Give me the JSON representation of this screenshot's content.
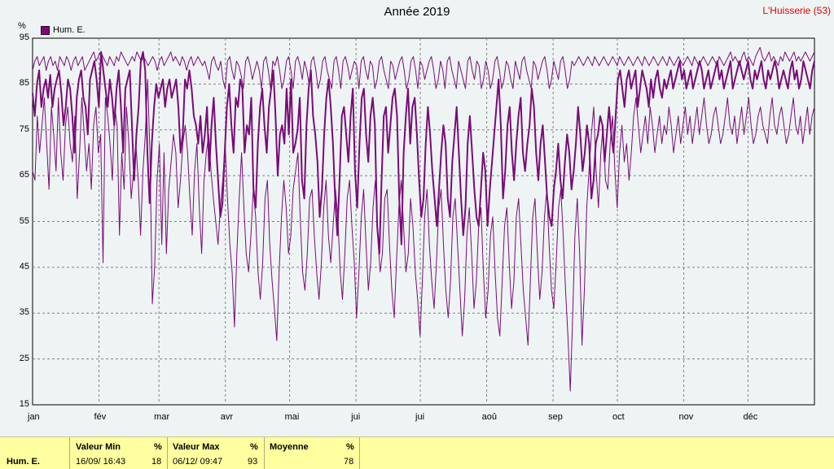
{
  "title": "Année 2019",
  "station": "L'Huisserie (53)",
  "unit": "%",
  "legend": {
    "label": "Hum. E.",
    "color": "#7a0a78"
  },
  "colors": {
    "background": "#eef4f4",
    "grid": "#808080",
    "series": "#7a0a78",
    "stats_bg": "#ffffa0"
  },
  "chart_data": {
    "type": "line",
    "title": "Année 2019",
    "xlabel": "",
    "ylabel": "%",
    "ylim": [
      15,
      95
    ],
    "yticks": [
      95,
      85,
      75,
      65,
      55,
      45,
      35,
      25,
      15
    ],
    "x_tick_labels": [
      "jan",
      "fév",
      "mar",
      "avr",
      "mai",
      "jui",
      "jui",
      "aoû",
      "sep",
      "oct",
      "nov",
      "déc"
    ],
    "x_tick_days": [
      0,
      31,
      59,
      90,
      120,
      151,
      181,
      212,
      243,
      273,
      304,
      334
    ],
    "x_range_days": [
      0,
      365
    ],
    "grid": true,
    "legend_position": "top-left",
    "series": [
      {
        "name": "Hum. E.",
        "role": "average",
        "stroke": 2,
        "values": [
          83,
          78,
          85,
          88,
          80,
          84,
          86,
          82,
          87,
          80,
          84,
          86,
          88,
          83,
          76,
          80,
          86,
          84,
          78,
          70,
          82,
          86,
          88,
          82,
          80,
          74,
          86,
          88,
          90,
          86,
          80,
          92,
          88,
          84,
          80,
          86,
          82,
          76,
          84,
          88,
          80,
          70,
          84,
          86,
          88,
          76,
          64,
          74,
          80,
          90,
          92,
          88,
          70,
          59,
          72,
          80,
          85,
          82,
          84,
          86,
          80,
          84,
          86,
          82,
          84,
          86,
          80,
          70,
          74,
          86,
          84,
          88,
          84,
          78,
          76,
          72,
          78,
          70,
          74,
          80,
          66,
          76,
          82,
          72,
          64,
          56,
          59,
          70,
          80,
          85,
          76,
          70,
          82,
          80,
          86,
          84,
          70,
          76,
          74,
          82,
          62,
          58,
          72,
          80,
          84,
          76,
          70,
          80,
          84,
          88,
          78,
          65,
          74,
          76,
          72,
          84,
          74,
          86,
          70,
          72,
          75,
          82,
          64,
          60,
          76,
          84,
          88,
          78,
          74,
          68,
          56,
          62,
          74,
          82,
          86,
          80,
          72,
          60,
          52,
          64,
          78,
          80,
          74,
          68,
          78,
          84,
          66,
          58,
          72,
          82,
          84,
          74,
          68,
          78,
          82,
          76,
          54,
          48,
          64,
          78,
          80,
          70,
          76,
          82,
          84,
          78,
          60,
          50,
          70,
          78,
          84,
          72,
          80,
          82,
          74,
          64,
          56,
          60,
          72,
          80,
          74,
          66,
          60,
          54,
          62,
          70,
          76,
          72,
          60,
          56,
          68,
          74,
          80,
          70,
          60,
          52,
          58,
          72,
          78,
          70,
          62,
          56,
          54,
          62,
          70,
          66,
          54,
          62,
          68,
          74,
          80,
          86,
          76,
          60,
          66,
          76,
          80,
          70,
          64,
          72,
          78,
          82,
          70,
          66,
          72,
          76,
          84,
          80,
          70,
          64,
          72,
          76,
          68,
          60,
          56,
          54,
          62,
          66,
          72,
          64,
          60,
          68,
          74,
          70,
          62,
          66,
          72,
          80,
          74,
          66,
          70,
          76,
          72,
          60,
          64,
          72,
          74,
          78,
          76,
          68,
          74,
          80,
          74,
          70,
          78,
          86,
          88,
          84,
          80,
          86,
          88,
          84,
          86,
          88,
          80,
          84,
          88,
          86,
          84,
          80,
          86,
          82,
          86,
          88,
          84,
          82,
          86,
          84,
          86,
          88,
          84,
          86,
          88,
          90,
          86,
          88,
          84,
          86,
          88,
          84,
          86,
          88,
          90,
          88,
          84,
          86,
          88,
          84,
          86,
          88,
          90,
          86,
          88,
          84,
          86,
          88,
          90,
          84,
          86,
          88,
          90,
          88,
          86,
          88,
          90,
          86,
          84,
          88,
          86,
          88,
          90,
          86,
          84,
          88,
          86,
          88,
          90,
          88,
          84,
          86,
          88,
          86,
          84,
          88,
          90,
          86,
          88,
          84,
          86,
          90,
          88,
          86,
          84,
          88,
          90
        ]
      },
      {
        "name": "Hum. E.",
        "role": "minimum",
        "stroke": 1,
        "values": [
          66,
          64,
          78,
          70,
          76,
          82,
          72,
          62,
          80,
          74,
          66,
          82,
          70,
          64,
          76,
          80,
          72,
          68,
          78,
          60,
          70,
          82,
          74,
          66,
          72,
          62,
          76,
          80,
          70,
          74,
          46,
          82,
          78,
          72,
          64,
          80,
          76,
          52,
          70,
          62,
          80,
          72,
          60,
          66,
          72,
          64,
          52,
          66,
          74,
          86,
          70,
          37,
          45,
          64,
          72,
          50,
          70,
          48,
          62,
          68,
          74,
          70,
          58,
          64,
          72,
          76,
          70,
          60,
          52,
          66,
          72,
          58,
          48,
          64,
          70,
          74,
          66,
          60,
          55,
          50,
          58,
          64,
          72,
          60,
          50,
          44,
          32,
          48,
          60,
          70,
          58,
          48,
          44,
          52,
          62,
          56,
          44,
          38,
          46,
          60,
          64,
          50,
          42,
          36,
          29,
          44,
          56,
          64,
          58,
          48,
          52,
          62,
          66,
          70,
          56,
          44,
          40,
          48,
          60,
          62,
          52,
          44,
          38,
          46,
          58,
          64,
          52,
          46,
          54,
          62,
          56,
          44,
          38,
          48,
          60,
          64,
          54,
          46,
          34,
          44,
          56,
          62,
          50,
          40,
          46,
          58,
          64,
          52,
          44,
          48,
          60,
          62,
          50,
          40,
          34,
          46,
          58,
          64,
          54,
          44,
          48,
          60,
          54,
          44,
          38,
          30,
          42,
          56,
          62,
          50,
          42,
          36,
          46,
          58,
          62,
          50,
          40,
          34,
          42,
          56,
          60,
          50,
          40,
          30,
          38,
          52,
          58,
          48,
          36,
          42,
          54,
          58,
          44,
          34,
          40,
          52,
          56,
          44,
          34,
          30,
          42,
          54,
          58,
          46,
          36,
          42,
          56,
          60,
          50,
          40,
          34,
          28,
          42,
          56,
          60,
          48,
          38,
          44,
          56,
          62,
          50,
          40,
          36,
          46,
          58,
          62,
          52,
          40,
          30,
          18,
          34,
          52,
          60,
          48,
          28,
          40,
          58,
          66,
          74,
          80,
          66,
          58,
          70,
          76,
          64,
          62,
          72,
          78,
          66,
          58,
          70,
          76,
          68,
          72,
          64,
          70,
          78,
          82,
          76,
          70,
          74,
          78,
          72,
          80,
          76,
          70,
          74,
          78,
          72,
          76,
          74,
          80,
          76,
          70,
          74,
          78,
          72,
          76,
          80,
          74,
          78,
          72,
          76,
          80,
          74,
          78,
          82,
          76,
          72,
          74,
          78,
          80,
          76,
          72,
          74,
          78,
          82,
          76,
          74,
          78,
          72,
          76,
          80,
          74,
          78,
          82,
          76,
          72,
          74,
          78,
          80,
          76,
          74,
          72,
          78,
          82,
          76,
          74,
          78,
          80,
          76,
          72,
          74,
          78,
          82,
          76,
          74,
          78,
          72,
          76,
          80,
          74,
          78,
          80
        ]
      },
      {
        "name": "Hum. E.",
        "role": "maximum",
        "stroke": 1,
        "values": [
          88,
          90,
          91,
          89,
          90,
          91,
          88,
          90,
          91,
          89,
          90,
          88,
          91,
          90,
          89,
          91,
          90,
          88,
          90,
          91,
          89,
          90,
          91,
          88,
          89,
          90,
          91,
          92,
          90,
          91,
          92,
          91,
          90,
          89,
          91,
          90,
          89,
          91,
          90,
          92,
          91,
          90,
          89,
          90,
          91,
          90,
          92,
          91,
          90,
          91,
          90,
          89,
          90,
          91,
          90,
          88,
          90,
          91,
          89,
          90,
          91,
          92,
          90,
          91,
          90,
          89,
          91,
          90,
          88,
          90,
          91,
          89,
          90,
          91,
          90,
          89,
          90,
          88,
          86,
          90,
          91,
          89,
          88,
          90,
          86,
          84,
          90,
          91,
          88,
          86,
          90,
          89,
          87,
          84,
          90,
          91,
          89,
          86,
          88,
          90,
          88,
          84,
          90,
          91,
          88,
          84,
          90,
          89,
          91,
          88,
          84,
          86,
          90,
          91,
          88,
          84,
          90,
          91,
          89,
          86,
          90,
          88,
          85,
          90,
          91,
          88,
          84,
          86,
          90,
          91,
          88,
          86,
          84,
          90,
          91,
          88,
          84,
          90,
          91,
          89,
          86,
          88,
          90,
          89,
          84,
          90,
          91,
          88,
          86,
          90,
          89,
          84,
          86,
          90,
          91,
          88,
          86,
          84,
          90,
          89,
          86,
          88,
          90,
          91,
          88,
          84,
          86,
          90,
          91,
          88,
          84,
          90,
          89,
          86,
          88,
          90,
          91,
          88,
          84,
          86,
          90,
          88,
          84,
          90,
          91,
          88,
          86,
          84,
          90,
          88,
          86,
          84,
          90,
          91,
          88,
          86,
          90,
          89,
          84,
          86,
          90,
          88,
          84,
          86,
          90,
          91,
          88,
          84,
          86,
          90,
          89,
          86,
          84,
          90,
          88,
          86,
          90,
          91,
          88,
          86,
          84,
          90,
          89,
          86,
          88,
          90,
          91,
          88,
          84,
          86,
          90,
          88,
          86,
          90,
          91,
          88,
          84,
          86,
          90,
          89,
          90,
          91,
          90,
          89,
          90,
          91,
          90,
          89,
          91,
          90,
          89,
          90,
          91,
          90,
          89,
          90,
          91,
          90,
          89,
          91,
          90,
          89,
          90,
          91,
          90,
          89,
          90,
          91,
          90,
          89,
          91,
          90,
          89,
          90,
          91,
          90,
          89,
          90,
          91,
          90,
          89,
          91,
          90,
          89,
          90,
          91,
          90,
          89,
          90,
          91,
          90,
          89,
          91,
          90,
          89,
          90,
          91,
          90,
          89,
          90,
          91,
          90,
          89,
          91,
          90,
          89,
          90,
          91,
          92,
          90,
          91,
          90,
          89,
          91,
          92,
          90,
          91,
          90,
          89,
          91,
          92,
          93,
          91,
          90,
          91,
          92,
          90,
          91,
          90,
          89,
          91,
          90,
          92,
          91,
          90,
          91,
          92,
          90,
          91,
          90,
          91,
          92,
          91,
          90,
          91,
          92
        ]
      }
    ]
  },
  "stats": {
    "series_label": "Hum. E.",
    "min": {
      "header": "Valeur Min",
      "unit": "%",
      "datetime": "16/09/ 16:43",
      "value": "18"
    },
    "max": {
      "header": "Valeur Max",
      "unit": "%",
      "datetime": "06/12/ 09:47",
      "value": "93"
    },
    "avg": {
      "header": "Moyenne",
      "unit": "%",
      "value": "78"
    }
  }
}
